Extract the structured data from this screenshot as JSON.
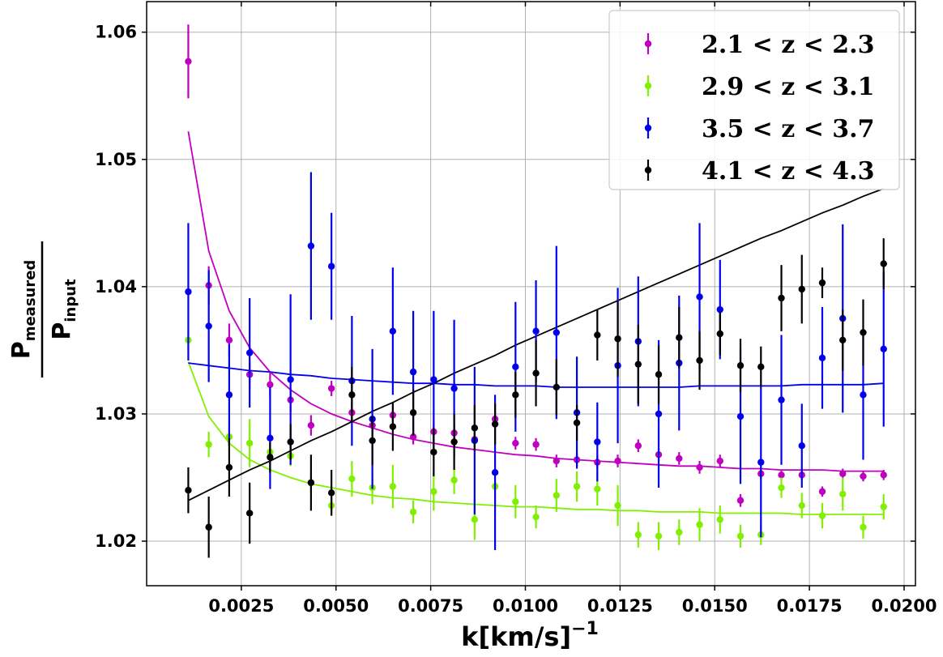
{
  "chart_data": {
    "type": "scatter",
    "title": "",
    "xlabel": {
      "main": "k[km/s]",
      "sup": "−1"
    },
    "ylabel": {
      "numerator": "P",
      "numerator_sub": "measured",
      "denominator": "P",
      "denominator_sub": "input"
    },
    "xlim": [
      0,
      0.0203
    ],
    "ylim": [
      1.0165,
      1.0624
    ],
    "xticks": [
      0.0025,
      0.005,
      0.0075,
      0.01,
      0.0125,
      0.015,
      0.0175,
      0.02
    ],
    "xtick_labels": [
      "0.0025",
      "0.0050",
      "0.0075",
      "0.0100",
      "0.0125",
      "0.0150",
      "0.0175",
      "0.0200"
    ],
    "yticks": [
      1.02,
      1.03,
      1.04,
      1.05,
      1.06
    ],
    "ytick_labels": [
      "1.02",
      "1.03",
      "1.04",
      "1.05",
      "1.06"
    ],
    "grid": true,
    "legend_position": "top-right",
    "x": [
      0.0011,
      0.00164,
      0.00218,
      0.00272,
      0.00326,
      0.0038,
      0.00434,
      0.00488,
      0.00542,
      0.00596,
      0.0065,
      0.00704,
      0.00758,
      0.00812,
      0.00866,
      0.0092,
      0.00974,
      0.01028,
      0.01082,
      0.01136,
      0.0119,
      0.01244,
      0.01298,
      0.01352,
      0.01406,
      0.0146,
      0.01514,
      0.01568,
      0.01622,
      0.01676,
      0.0173,
      0.01784,
      0.01838,
      0.01892,
      0.01946
    ],
    "series": [
      {
        "name": "2.1 < z < 2.3",
        "color": "#c000c0",
        "values": [
          1.0577,
          1.0401,
          1.0358,
          1.0331,
          1.0323,
          1.0311,
          1.0291,
          1.032,
          1.0301,
          1.0291,
          1.0299,
          1.0282,
          1.0286,
          1.0285,
          1.028,
          1.0296,
          1.0277,
          1.0276,
          1.0263,
          1.0264,
          1.0262,
          1.0263,
          1.0275,
          1.0268,
          1.0265,
          1.0258,
          1.0263,
          1.0232,
          1.0253,
          1.0252,
          1.0252,
          1.0239,
          1.0253,
          1.0251,
          1.0252
        ],
        "errors": [
          0.0029,
          0.0015,
          0.0013,
          0.0011,
          0.001,
          0.0009,
          0.0008,
          0.0006,
          0.0007,
          0.0007,
          0.0007,
          0.0006,
          0.0006,
          0.0006,
          0.0006,
          0.0005,
          0.0005,
          0.0005,
          0.0005,
          0.0005,
          0.0005,
          0.0005,
          0.0005,
          0.0005,
          0.0005,
          0.0005,
          0.0005,
          0.0005,
          0.0004,
          0.0004,
          0.0004,
          0.0004,
          0.0004,
          0.0004,
          0.0004
        ],
        "fit": [
          1.0522,
          1.0428,
          1.0381,
          1.0352,
          1.0333,
          1.0319,
          1.0308,
          1.03,
          1.0294,
          1.0289,
          1.0284,
          1.028,
          1.0277,
          1.0274,
          1.0272,
          1.027,
          1.0268,
          1.0267,
          1.0265,
          1.0264,
          1.0263,
          1.0262,
          1.0261,
          1.026,
          1.0259,
          1.0259,
          1.0258,
          1.0257,
          1.0257,
          1.0256,
          1.0256,
          1.0256,
          1.0255,
          1.0255,
          1.0255
        ]
      },
      {
        "name": "2.9 < z < 3.1",
        "color": "#80f000",
        "values": [
          1.0358,
          1.0276,
          1.0282,
          1.0277,
          1.027,
          1.0267,
          1.0246,
          1.0228,
          1.0249,
          1.0242,
          1.0243,
          1.0223,
          1.0239,
          1.0248,
          1.0217,
          1.0243,
          1.0231,
          1.0219,
          1.0236,
          1.0243,
          1.0241,
          1.0228,
          1.0205,
          1.0204,
          1.0207,
          1.0213,
          1.0217,
          1.0204,
          1.0205,
          1.0242,
          1.0228,
          1.022,
          1.0237,
          1.0211,
          1.0227
        ],
        "errors": [
          0.0006,
          0.001,
          0.0009,
          0.0019,
          0.0008,
          0.0008,
          0.0009,
          0.0007,
          0.0014,
          0.0013,
          0.0017,
          0.0009,
          0.0015,
          0.0011,
          0.0016,
          0.0017,
          0.0013,
          0.0009,
          0.0013,
          0.0012,
          0.0013,
          0.0016,
          0.001,
          0.0011,
          0.001,
          0.0013,
          0.0011,
          0.0009,
          0.0008,
          0.0008,
          0.001,
          0.001,
          0.0013,
          0.0009,
          0.001
        ],
        "fit": [
          1.0341,
          1.0298,
          1.0277,
          1.0264,
          1.0256,
          1.025,
          1.0245,
          1.0242,
          1.0239,
          1.0236,
          1.0234,
          1.0233,
          1.0231,
          1.023,
          1.0229,
          1.0228,
          1.0227,
          1.0227,
          1.0226,
          1.0225,
          1.0225,
          1.0224,
          1.0224,
          1.0223,
          1.0223,
          1.0223,
          1.0222,
          1.0222,
          1.0222,
          1.0222,
          1.0221,
          1.0221,
          1.0221,
          1.0221,
          1.0221
        ]
      },
      {
        "name": "3.5 < z < 3.7",
        "color": "#0000ee",
        "values": [
          1.0396,
          1.0369,
          1.0315,
          1.0348,
          1.0281,
          1.0327,
          1.0432,
          1.0416,
          1.0326,
          1.0296,
          1.0365,
          1.0333,
          1.0327,
          1.032,
          1.0279,
          1.0254,
          1.0337,
          1.0365,
          1.0364,
          1.0301,
          1.0278,
          1.0338,
          1.0357,
          1.03,
          1.034,
          1.0392,
          1.0382,
          1.0298,
          1.0262,
          1.0311,
          1.0275,
          1.0344,
          1.0375,
          1.0315,
          1.0351
        ],
        "errors": [
          0.0054,
          0.0044,
          0.004,
          0.0043,
          0.004,
          0.0067,
          0.0058,
          0.0042,
          0.0051,
          0.0055,
          0.005,
          0.0048,
          0.0054,
          0.0054,
          0.0058,
          0.0061,
          0.0051,
          0.004,
          0.0068,
          0.0044,
          0.0031,
          0.0061,
          0.0051,
          0.0058,
          0.0053,
          0.0058,
          0.0039,
          0.0053,
          0.0059,
          0.0051,
          0.0033,
          0.004,
          0.0074,
          0.0051,
          0.0061
        ],
        "fit": [
          1.034,
          1.0338,
          1.0336,
          1.0334,
          1.0333,
          1.0331,
          1.033,
          1.0328,
          1.0327,
          1.0326,
          1.0325,
          1.0324,
          1.0324,
          1.0323,
          1.0323,
          1.0322,
          1.0322,
          1.0322,
          1.0321,
          1.0321,
          1.0321,
          1.0321,
          1.0321,
          1.0321,
          1.0321,
          1.0322,
          1.0322,
          1.0322,
          1.0322,
          1.0322,
          1.0323,
          1.0323,
          1.0323,
          1.0323,
          1.0324
        ]
      },
      {
        "name": "4.1 < z < 4.3",
        "color": "#000000",
        "values": [
          1.024,
          1.0211,
          1.0258,
          1.0222,
          1.0266,
          1.0278,
          1.0246,
          1.0238,
          1.0315,
          1.0279,
          1.029,
          1.0301,
          1.027,
          1.0278,
          1.0289,
          1.0292,
          1.0315,
          1.0332,
          1.0321,
          1.0293,
          1.0362,
          1.0359,
          1.0339,
          1.0331,
          1.036,
          1.0342,
          1.0363,
          1.0338,
          1.0337,
          1.0391,
          1.0398,
          1.0403,
          1.0358,
          1.0364,
          1.0418
        ],
        "errors": [
          0.0018,
          0.0024,
          0.0023,
          0.0024,
          0.0012,
          0.0014,
          0.0022,
          0.0018,
          0.0022,
          0.0019,
          0.0019,
          0.0018,
          0.0019,
          0.0022,
          0.0018,
          0.0016,
          0.0018,
          0.0026,
          0.0022,
          0.0014,
          0.002,
          0.003,
          0.0031,
          0.0023,
          0.0024,
          0.0023,
          0.0017,
          0.0021,
          0.0016,
          0.0026,
          0.0027,
          0.0012,
          0.0024,
          0.0026,
          0.002
        ],
        "fit": [
          1.0232,
          1.024,
          1.0248,
          1.0256,
          1.0263,
          1.0271,
          1.0279,
          1.0286,
          1.0294,
          1.0302,
          1.0309,
          1.0317,
          1.0324,
          1.0332,
          1.0339,
          1.0346,
          1.0354,
          1.0361,
          1.0368,
          1.0375,
          1.0382,
          1.0389,
          1.0396,
          1.0403,
          1.041,
          1.0417,
          1.0424,
          1.0431,
          1.0438,
          1.0444,
          1.0451,
          1.0458,
          1.0464,
          1.0471,
          1.0477
        ]
      }
    ]
  }
}
